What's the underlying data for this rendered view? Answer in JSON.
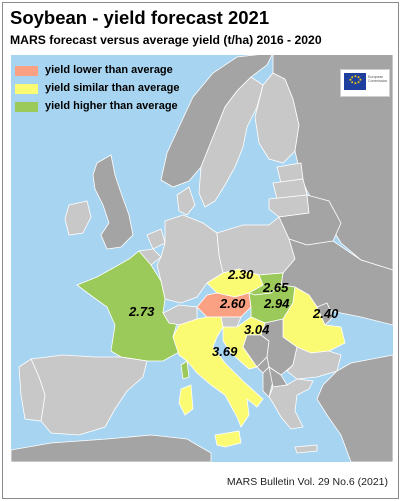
{
  "title": "Soybean - yield forecast 2021",
  "subtitle": "MARS forecast versus average yield (t/ha) 2016 - 2020",
  "legend": [
    {
      "label": "yield lower than average",
      "color": "#fba183"
    },
    {
      "label": "yield similar than average",
      "color": "#fbfa73"
    },
    {
      "label": "yield higher than average",
      "color": "#9bc95a"
    }
  ],
  "logo": {
    "text_line1": "European",
    "text_line2": "Commission"
  },
  "colors": {
    "sea": "#a7d4f0",
    "land_other": "#c8c8c8",
    "land_nonEU": "#a4a4a4",
    "border": "#ffffff"
  },
  "countries": {
    "france": {
      "value": "2.73",
      "category": "higher"
    },
    "austria": {
      "value": "2.60",
      "category": "lower"
    },
    "czechia": {
      "value": "2.30",
      "category": "similar"
    },
    "slovakia": {
      "value": "2.65",
      "category": "higher"
    },
    "hungary": {
      "value": "2.94",
      "category": "higher"
    },
    "romania": {
      "value": "2.40",
      "category": "similar"
    },
    "croatia": {
      "value": "3.04",
      "category": "similar"
    },
    "italy": {
      "value": "3.69",
      "category": "similar"
    }
  },
  "footer": "MARS Bulletin Vol. 29 No.6 (2021)"
}
